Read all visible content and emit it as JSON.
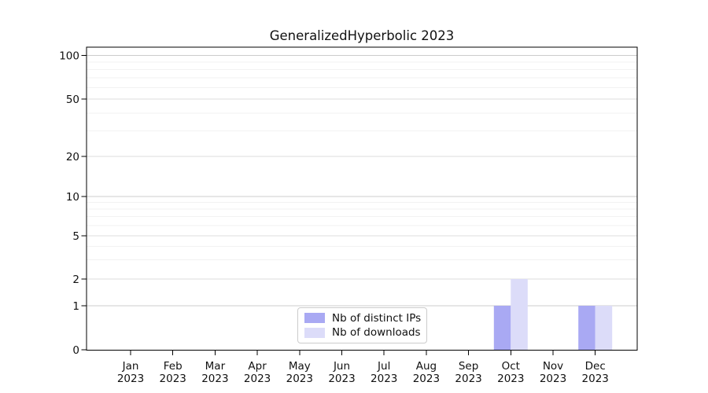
{
  "chart_data": {
    "type": "bar",
    "title": "GeneralizedHyperbolic 2023",
    "categories": [
      "Jan 2023",
      "Feb 2023",
      "Mar 2023",
      "Apr 2023",
      "May 2023",
      "Jun 2023",
      "Jul 2023",
      "Aug 2023",
      "Sep 2023",
      "Oct 2023",
      "Nov 2023",
      "Dec 2023"
    ],
    "series": [
      {
        "name": "Nb of distinct IPs",
        "color": "#a9a9f3",
        "values": [
          0,
          0,
          0,
          0,
          0,
          0,
          0,
          0,
          0,
          1,
          0,
          1
        ]
      },
      {
        "name": "Nb of downloads",
        "color": "#dcdcf9",
        "values": [
          0,
          0,
          0,
          0,
          0,
          0,
          0,
          0,
          0,
          2,
          0,
          1
        ]
      }
    ],
    "xlabel": "",
    "ylabel": "",
    "yticks": [
      0,
      1,
      2,
      5,
      10,
      20,
      50,
      100
    ],
    "yscale": "log-like with linear segment below 1",
    "ylim": [
      0,
      115
    ],
    "grid": "horizontal major and log-minor gridlines",
    "legend_position": "lower center"
  },
  "colors": {
    "grid_decade": "#cccccc",
    "grid_major": "#dddddd",
    "grid_minor": "#f2f2f2",
    "axis": "#000000",
    "text": "#111111",
    "legend_border": "#cccccc"
  }
}
